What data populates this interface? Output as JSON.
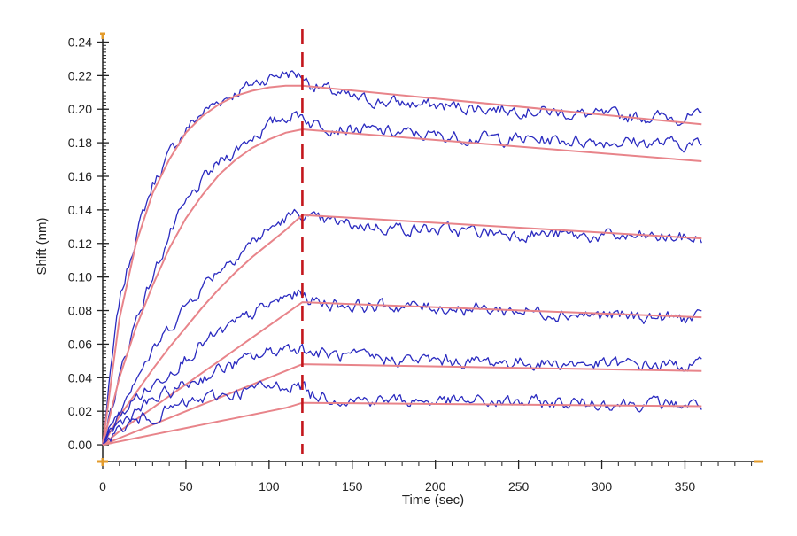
{
  "chart_data": {
    "type": "line",
    "title": "",
    "xlabel": "Time (sec)",
    "ylabel": "Shift (nm)",
    "xlim": [
      0,
      395
    ],
    "ylim": [
      -0.01,
      0.245
    ],
    "xticks": [
      0,
      50,
      100,
      150,
      200,
      250,
      300,
      350
    ],
    "yticks": [
      0.0,
      0.02,
      0.04,
      0.06,
      0.08,
      0.1,
      0.12,
      0.14,
      0.16,
      0.18,
      0.2,
      0.22,
      0.24
    ],
    "xtick_labels": [
      "0",
      "50",
      "100",
      "150",
      "200",
      "250",
      "300",
      "350"
    ],
    "ytick_labels": [
      "0.00",
      "0.02",
      "0.04",
      "0.06",
      "0.08",
      "0.10",
      "0.12",
      "0.14",
      "0.16",
      "0.18",
      "0.20",
      "0.22",
      "0.24"
    ],
    "grid": false,
    "legend": "none",
    "dissociation_start": 120,
    "colors": {
      "data": "#2b2bc0",
      "fit": "#e8848a",
      "marker": "#c4161c",
      "axis": "#222222",
      "axis_accent": "#e39b2b"
    },
    "series": [
      {
        "kind": "data",
        "x": [
          0,
          5,
          10,
          20,
          30,
          40,
          50,
          60,
          70,
          80,
          90,
          100,
          110,
          120,
          125,
          150,
          200,
          250,
          300,
          360
        ],
        "y": [
          0,
          0.045,
          0.085,
          0.125,
          0.155,
          0.173,
          0.188,
          0.198,
          0.205,
          0.21,
          0.215,
          0.219,
          0.222,
          0.22,
          0.215,
          0.206,
          0.202,
          0.2,
          0.196,
          0.195
        ]
      },
      {
        "kind": "fit",
        "x": [
          0,
          10,
          20,
          30,
          40,
          50,
          60,
          70,
          80,
          90,
          100,
          110,
          120,
          360
        ],
        "y": [
          0,
          0.075,
          0.12,
          0.15,
          0.17,
          0.186,
          0.196,
          0.203,
          0.208,
          0.211,
          0.213,
          0.214,
          0.214,
          0.191
        ]
      },
      {
        "kind": "data",
        "x": [
          0,
          5,
          10,
          20,
          30,
          40,
          50,
          60,
          70,
          80,
          90,
          100,
          110,
          120,
          125,
          150,
          200,
          250,
          300,
          360
        ],
        "y": [
          0,
          0.02,
          0.04,
          0.075,
          0.1,
          0.125,
          0.143,
          0.157,
          0.168,
          0.176,
          0.184,
          0.19,
          0.196,
          0.197,
          0.192,
          0.188,
          0.184,
          0.182,
          0.181,
          0.179
        ]
      },
      {
        "kind": "fit",
        "x": [
          0,
          10,
          20,
          30,
          40,
          50,
          60,
          70,
          80,
          90,
          100,
          110,
          120,
          360
        ],
        "y": [
          0,
          0.04,
          0.07,
          0.095,
          0.117,
          0.135,
          0.149,
          0.161,
          0.17,
          0.177,
          0.182,
          0.186,
          0.188,
          0.169
        ]
      },
      {
        "kind": "data",
        "x": [
          0,
          5,
          10,
          20,
          30,
          40,
          50,
          60,
          70,
          80,
          90,
          100,
          110,
          120,
          125,
          150,
          200,
          250,
          300,
          360
        ],
        "y": [
          0,
          0.012,
          0.022,
          0.042,
          0.055,
          0.07,
          0.083,
          0.095,
          0.105,
          0.113,
          0.121,
          0.128,
          0.135,
          0.138,
          0.134,
          0.131,
          0.128,
          0.126,
          0.124,
          0.123
        ]
      },
      {
        "kind": "fit",
        "x": [
          0,
          10,
          20,
          30,
          40,
          50,
          60,
          70,
          80,
          90,
          100,
          110,
          120,
          360
        ],
        "y": [
          0,
          0.017,
          0.031,
          0.045,
          0.058,
          0.07,
          0.082,
          0.093,
          0.103,
          0.112,
          0.12,
          0.128,
          0.137,
          0.123
        ]
      },
      {
        "kind": "data",
        "x": [
          0,
          5,
          10,
          20,
          30,
          40,
          50,
          60,
          70,
          80,
          90,
          100,
          110,
          120,
          125,
          150,
          200,
          250,
          300,
          360
        ],
        "y": [
          0,
          0.01,
          0.017,
          0.028,
          0.035,
          0.044,
          0.052,
          0.06,
          0.066,
          0.072,
          0.078,
          0.083,
          0.088,
          0.09,
          0.086,
          0.083,
          0.082,
          0.08,
          0.077,
          0.075
        ]
      },
      {
        "kind": "fit",
        "x": [
          0,
          10,
          20,
          30,
          40,
          50,
          60,
          70,
          80,
          90,
          100,
          110,
          120,
          360
        ],
        "y": [
          0,
          0.008,
          0.015,
          0.022,
          0.029,
          0.036,
          0.043,
          0.05,
          0.057,
          0.064,
          0.071,
          0.078,
          0.085,
          0.076
        ]
      },
      {
        "kind": "data",
        "x": [
          0,
          5,
          10,
          20,
          30,
          40,
          50,
          60,
          70,
          80,
          90,
          100,
          110,
          120,
          125,
          150,
          200,
          250,
          300,
          360
        ],
        "y": [
          0,
          0.008,
          0.013,
          0.02,
          0.026,
          0.031,
          0.036,
          0.04,
          0.045,
          0.048,
          0.052,
          0.055,
          0.058,
          0.058,
          0.055,
          0.052,
          0.05,
          0.049,
          0.048,
          0.047
        ]
      },
      {
        "kind": "fit",
        "x": [
          0,
          10,
          20,
          30,
          40,
          50,
          60,
          70,
          80,
          90,
          100,
          110,
          120,
          360
        ],
        "y": [
          0,
          0.004,
          0.008,
          0.012,
          0.016,
          0.02,
          0.024,
          0.028,
          0.032,
          0.036,
          0.04,
          0.044,
          0.048,
          0.044
        ]
      },
      {
        "kind": "data",
        "x": [
          0,
          5,
          10,
          20,
          30,
          40,
          50,
          60,
          70,
          80,
          90,
          100,
          110,
          120,
          125,
          150,
          200,
          250,
          300,
          360
        ],
        "y": [
          0,
          0.005,
          0.009,
          0.014,
          0.017,
          0.021,
          0.024,
          0.027,
          0.029,
          0.031,
          0.033,
          0.034,
          0.036,
          0.035,
          0.03,
          0.027,
          0.026,
          0.025,
          0.025,
          0.024
        ]
      },
      {
        "kind": "fit",
        "x": [
          0,
          10,
          20,
          30,
          40,
          50,
          60,
          70,
          80,
          90,
          100,
          110,
          120,
          360
        ],
        "y": [
          0,
          0.002,
          0.004,
          0.006,
          0.008,
          0.01,
          0.012,
          0.014,
          0.016,
          0.018,
          0.02,
          0.022,
          0.025,
          0.023
        ]
      }
    ]
  }
}
